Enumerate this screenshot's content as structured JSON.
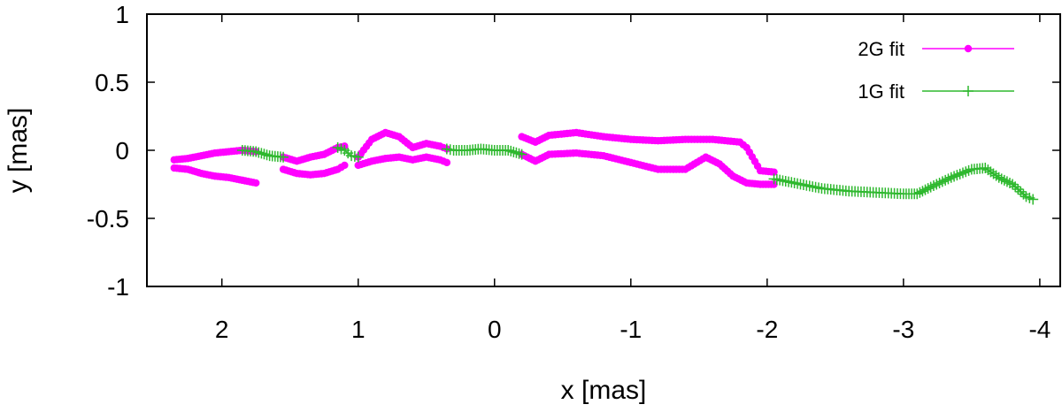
{
  "chart_data": {
    "type": "scatter",
    "xlabel": "x [mas]",
    "ylabel": "y [mas]",
    "xlim": [
      2.55,
      -4.15
    ],
    "ylim": [
      -1,
      1
    ],
    "x_ticks": [
      2,
      1,
      0,
      -1,
      -2,
      -3,
      -4
    ],
    "y_ticks": [
      1,
      0.5,
      0,
      -0.5,
      -1
    ],
    "grid": false,
    "legend_position": "top-right",
    "series": [
      {
        "name": "2G fit",
        "color": "#ff00ff",
        "marker": "filled-circle",
        "segments": [
          [
            [
              2.35,
              -0.07
            ],
            [
              2.25,
              -0.06
            ],
            [
              2.15,
              -0.04
            ],
            [
              2.05,
              -0.02
            ],
            [
              1.95,
              -0.01
            ],
            [
              1.85,
              0.0
            ],
            [
              1.75,
              -0.01
            ]
          ],
          [
            [
              2.35,
              -0.13
            ],
            [
              2.25,
              -0.14
            ],
            [
              2.15,
              -0.17
            ],
            [
              2.05,
              -0.19
            ],
            [
              1.95,
              -0.2
            ],
            [
              1.85,
              -0.22
            ],
            [
              1.75,
              -0.24
            ]
          ],
          [
            [
              1.55,
              -0.05
            ],
            [
              1.45,
              -0.08
            ],
            [
              1.35,
              -0.05
            ],
            [
              1.25,
              -0.03
            ],
            [
              1.15,
              0.02
            ],
            [
              1.1,
              0.03
            ]
          ],
          [
            [
              1.55,
              -0.14
            ],
            [
              1.45,
              -0.17
            ],
            [
              1.35,
              -0.18
            ],
            [
              1.25,
              -0.17
            ],
            [
              1.15,
              -0.14
            ],
            [
              1.1,
              -0.11
            ]
          ],
          [
            [
              1.0,
              -0.05
            ],
            [
              0.9,
              0.08
            ],
            [
              0.8,
              0.13
            ],
            [
              0.7,
              0.1
            ],
            [
              0.6,
              0.02
            ],
            [
              0.5,
              0.05
            ],
            [
              0.4,
              0.03
            ],
            [
              0.35,
              0.01
            ]
          ],
          [
            [
              1.0,
              -0.11
            ],
            [
              0.9,
              -0.08
            ],
            [
              0.8,
              -0.06
            ],
            [
              0.7,
              -0.05
            ],
            [
              0.6,
              -0.07
            ],
            [
              0.5,
              -0.05
            ],
            [
              0.4,
              -0.07
            ],
            [
              0.35,
              -0.09
            ]
          ],
          [
            [
              -0.2,
              0.1
            ],
            [
              -0.3,
              0.06
            ],
            [
              -0.4,
              0.11
            ],
            [
              -0.6,
              0.13
            ],
            [
              -0.8,
              0.1
            ],
            [
              -1.0,
              0.08
            ],
            [
              -1.2,
              0.07
            ],
            [
              -1.4,
              0.08
            ],
            [
              -1.6,
              0.08
            ],
            [
              -1.8,
              0.06
            ],
            [
              -1.85,
              0.02
            ],
            [
              -1.95,
              -0.15
            ],
            [
              -2.05,
              -0.16
            ]
          ],
          [
            [
              -0.2,
              -0.03
            ],
            [
              -0.3,
              -0.08
            ],
            [
              -0.4,
              -0.03
            ],
            [
              -0.6,
              -0.02
            ],
            [
              -0.8,
              -0.04
            ],
            [
              -1.0,
              -0.09
            ],
            [
              -1.2,
              -0.14
            ],
            [
              -1.4,
              -0.14
            ],
            [
              -1.55,
              -0.05
            ],
            [
              -1.65,
              -0.1
            ],
            [
              -1.75,
              -0.19
            ],
            [
              -1.85,
              -0.24
            ],
            [
              -1.95,
              -0.25
            ],
            [
              -2.05,
              -0.25
            ]
          ]
        ]
      },
      {
        "name": "1G fit",
        "color": "#2eb82e",
        "marker": "plus",
        "segments": [
          [
            [
              1.85,
              0.0
            ],
            [
              1.75,
              -0.01
            ],
            [
              1.65,
              -0.04
            ],
            [
              1.55,
              -0.05
            ]
          ],
          [
            [
              1.15,
              0.02
            ],
            [
              1.1,
              0.0
            ],
            [
              1.05,
              -0.04
            ],
            [
              1.0,
              -0.05
            ]
          ],
          [
            [
              0.35,
              0.01
            ],
            [
              0.3,
              0.0
            ],
            [
              0.2,
              0.0
            ],
            [
              0.1,
              0.01
            ],
            [
              0.0,
              0.0
            ],
            [
              -0.1,
              0.0
            ],
            [
              -0.2,
              -0.03
            ]
          ],
          [
            [
              -2.05,
              -0.21
            ],
            [
              -2.2,
              -0.24
            ],
            [
              -2.4,
              -0.28
            ],
            [
              -2.6,
              -0.3
            ],
            [
              -2.8,
              -0.31
            ],
            [
              -3.0,
              -0.32
            ],
            [
              -3.1,
              -0.32
            ],
            [
              -3.2,
              -0.27
            ],
            [
              -3.35,
              -0.2
            ],
            [
              -3.5,
              -0.14
            ],
            [
              -3.6,
              -0.13
            ],
            [
              -3.7,
              -0.2
            ],
            [
              -3.8,
              -0.25
            ],
            [
              -3.9,
              -0.34
            ],
            [
              -3.95,
              -0.36
            ]
          ]
        ]
      }
    ]
  }
}
